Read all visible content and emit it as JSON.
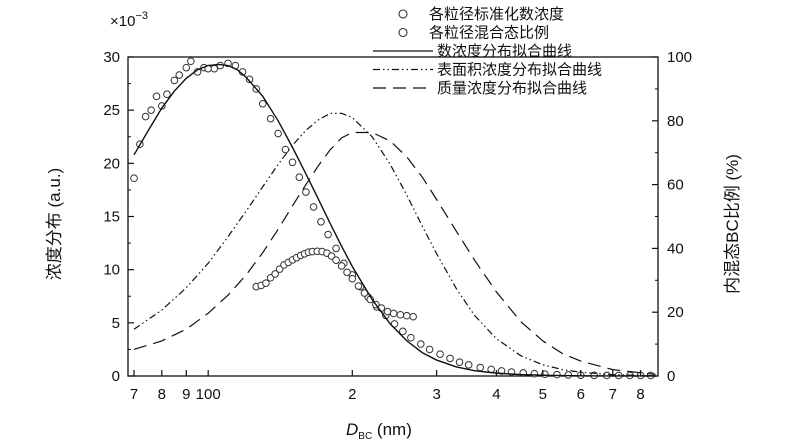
{
  "chart_data": {
    "type": "line",
    "x_scale": "log",
    "x_ticks": [
      {
        "value": 70,
        "label": "7"
      },
      {
        "value": 80,
        "label": "8"
      },
      {
        "value": 90,
        "label": "9"
      },
      {
        "value": 100,
        "label": "100"
      },
      {
        "value": 200,
        "label": "2"
      },
      {
        "value": 300,
        "label": "3"
      },
      {
        "value": 400,
        "label": "4"
      },
      {
        "value": 500,
        "label": "5"
      },
      {
        "value": 600,
        "label": "6"
      },
      {
        "value": 700,
        "label": "7"
      },
      {
        "value": 800,
        "label": "8"
      }
    ],
    "xlim": [
      68,
      870
    ],
    "xlabel": "D",
    "xlabel_sub": "BC",
    "xlabel_unit": " (nm)",
    "ylabel_left": "浓度分布 (a.u.)",
    "ylabel_right": "内混态BC比例 (%)",
    "y_left_multiplier": "×10",
    "y_left_exponent": "−3",
    "ylim_left": [
      0,
      30
    ],
    "ylim_right": [
      0,
      100
    ],
    "y_left_ticks": [
      0,
      5,
      10,
      15,
      20,
      25,
      30
    ],
    "y_right_ticks": [
      0,
      20,
      40,
      60,
      80,
      100
    ],
    "legend_position": "top-right",
    "series": [
      {
        "name": "各粒径标准化数浓度",
        "axis": "left",
        "style": "markers",
        "points": [
          [
            70,
            18.6
          ],
          [
            72,
            21.8
          ],
          [
            74,
            24.4
          ],
          [
            76,
            25
          ],
          [
            78,
            26.3
          ],
          [
            80,
            25.4
          ],
          [
            82,
            26.5
          ],
          [
            85,
            27.8
          ],
          [
            87,
            28.3
          ],
          [
            90,
            29
          ],
          [
            92,
            29.6
          ],
          [
            95,
            28.6
          ],
          [
            98,
            29
          ],
          [
            100,
            28.9
          ],
          [
            103,
            28.9
          ],
          [
            106,
            29.2
          ],
          [
            110,
            29.4
          ],
          [
            114,
            29.2
          ],
          [
            118,
            28.6
          ],
          [
            122,
            27.9
          ],
          [
            126,
            27
          ],
          [
            130,
            25.6
          ],
          [
            135,
            24.2
          ],
          [
            140,
            22.8
          ],
          [
            145,
            21.3
          ],
          [
            150,
            20.1
          ],
          [
            155,
            18.7
          ],
          [
            160,
            17.3
          ],
          [
            166,
            15.9
          ],
          [
            172,
            14.5
          ],
          [
            178,
            13.3
          ],
          [
            185,
            12
          ],
          [
            192,
            10.6
          ],
          [
            200,
            9.5
          ],
          [
            208,
            8.4
          ],
          [
            216,
            7.4
          ],
          [
            225,
            6.5
          ],
          [
            235,
            5.7
          ],
          [
            245,
            4.9
          ],
          [
            255,
            4.2
          ],
          [
            265,
            3.6
          ],
          [
            278,
            3
          ],
          [
            290,
            2.5
          ],
          [
            305,
            2.05
          ],
          [
            320,
            1.65
          ],
          [
            335,
            1.3
          ],
          [
            350,
            1.05
          ],
          [
            370,
            0.8
          ],
          [
            390,
            0.62
          ],
          [
            410,
            0.48
          ],
          [
            430,
            0.37
          ],
          [
            455,
            0.29
          ],
          [
            480,
            0.22
          ],
          [
            505,
            0.17
          ],
          [
            535,
            0.13
          ],
          [
            565,
            0.1
          ],
          [
            600,
            0.08
          ],
          [
            640,
            0.06
          ],
          [
            680,
            0.05
          ],
          [
            720,
            0.05
          ],
          [
            760,
            0.05
          ],
          [
            800,
            0.05
          ],
          [
            840,
            0.05
          ]
        ]
      },
      {
        "name": "各粒径混合态比例",
        "axis": "right",
        "style": "markers",
        "points": [
          [
            126,
            28
          ],
          [
            129,
            28.4
          ],
          [
            132,
            29.1
          ],
          [
            135,
            30.8
          ],
          [
            138,
            32
          ],
          [
            141,
            33.5
          ],
          [
            144,
            34.8
          ],
          [
            147,
            35.6
          ],
          [
            150,
            36.4
          ],
          [
            153,
            37.1
          ],
          [
            156,
            37.8
          ],
          [
            159,
            38.3
          ],
          [
            162,
            38.8
          ],
          [
            165,
            39
          ],
          [
            169,
            39.1
          ],
          [
            173,
            39
          ],
          [
            177,
            38.5
          ],
          [
            181,
            37.6
          ],
          [
            185,
            36.3
          ],
          [
            190,
            34.5
          ],
          [
            195,
            32.5
          ],
          [
            200,
            30.5
          ],
          [
            206,
            28.2
          ],
          [
            212,
            26
          ],
          [
            218,
            24
          ],
          [
            224,
            22.4
          ],
          [
            230,
            21.3
          ],
          [
            237,
            20.2
          ],
          [
            244,
            19.6
          ],
          [
            252,
            19.2
          ],
          [
            260,
            18.9
          ],
          [
            268,
            18.6
          ]
        ]
      },
      {
        "name": "数浓度分布拟合曲线",
        "axis": "left",
        "style": "solid",
        "points": [
          [
            70,
            20.8
          ],
          [
            75,
            23.1
          ],
          [
            80,
            25.2
          ],
          [
            85,
            26.8
          ],
          [
            90,
            28
          ],
          [
            95,
            28.8
          ],
          [
            100,
            29.2
          ],
          [
            105,
            29.3
          ],
          [
            110,
            29.2
          ],
          [
            115,
            28.8
          ],
          [
            120,
            28.1
          ],
          [
            130,
            26.3
          ],
          [
            140,
            24
          ],
          [
            150,
            21.5
          ],
          [
            160,
            19
          ],
          [
            170,
            16.6
          ],
          [
            180,
            14.3
          ],
          [
            190,
            12.2
          ],
          [
            200,
            10.3
          ],
          [
            220,
            7.2
          ],
          [
            240,
            4.9
          ],
          [
            260,
            3.3
          ],
          [
            280,
            2.2
          ],
          [
            300,
            1.5
          ],
          [
            330,
            0.85
          ],
          [
            360,
            0.5
          ],
          [
            400,
            0.27
          ],
          [
            450,
            0.13
          ],
          [
            500,
            0.07
          ],
          [
            550,
            0.04
          ],
          [
            600,
            0.02
          ],
          [
            700,
            0.01
          ],
          [
            860,
            0
          ]
        ]
      },
      {
        "name": "表面积浓度分布拟合曲线",
        "axis": "left",
        "style": "dash-dot-dot",
        "points": [
          [
            70,
            4.4
          ],
          [
            80,
            6.2
          ],
          [
            90,
            8.3
          ],
          [
            100,
            10.6
          ],
          [
            110,
            13.1
          ],
          [
            120,
            15.5
          ],
          [
            130,
            17.8
          ],
          [
            140,
            19.9
          ],
          [
            150,
            21.7
          ],
          [
            160,
            23.1
          ],
          [
            170,
            24.1
          ],
          [
            180,
            24.7
          ],
          [
            190,
            24.7
          ],
          [
            200,
            24.3
          ],
          [
            220,
            22.5
          ],
          [
            240,
            19.9
          ],
          [
            260,
            17
          ],
          [
            280,
            14.1
          ],
          [
            300,
            11.5
          ],
          [
            330,
            8.2
          ],
          [
            360,
            5.7
          ],
          [
            400,
            3.5
          ],
          [
            450,
            1.9
          ],
          [
            500,
            1.05
          ],
          [
            550,
            0.6
          ],
          [
            600,
            0.35
          ],
          [
            700,
            0.12
          ],
          [
            860,
            0.02
          ]
        ]
      },
      {
        "name": "质量浓度分布拟合曲线",
        "axis": "left",
        "style": "dashed",
        "points": [
          [
            70,
            2.5
          ],
          [
            80,
            3.3
          ],
          [
            90,
            4.4
          ],
          [
            100,
            5.9
          ],
          [
            110,
            7.6
          ],
          [
            120,
            9.5
          ],
          [
            130,
            11.6
          ],
          [
            140,
            13.8
          ],
          [
            150,
            16
          ],
          [
            160,
            18
          ],
          [
            170,
            19.8
          ],
          [
            180,
            21.3
          ],
          [
            190,
            22.4
          ],
          [
            200,
            22.9
          ],
          [
            210,
            22.9
          ],
          [
            220,
            22.9
          ],
          [
            240,
            22.1
          ],
          [
            260,
            20.6
          ],
          [
            280,
            18.7
          ],
          [
            300,
            16.6
          ],
          [
            330,
            13.6
          ],
          [
            360,
            10.9
          ],
          [
            400,
            7.9
          ],
          [
            450,
            5.1
          ],
          [
            500,
            3.3
          ],
          [
            550,
            2.1
          ],
          [
            600,
            1.4
          ],
          [
            700,
            0.6
          ],
          [
            860,
            0.15
          ]
        ]
      }
    ]
  }
}
